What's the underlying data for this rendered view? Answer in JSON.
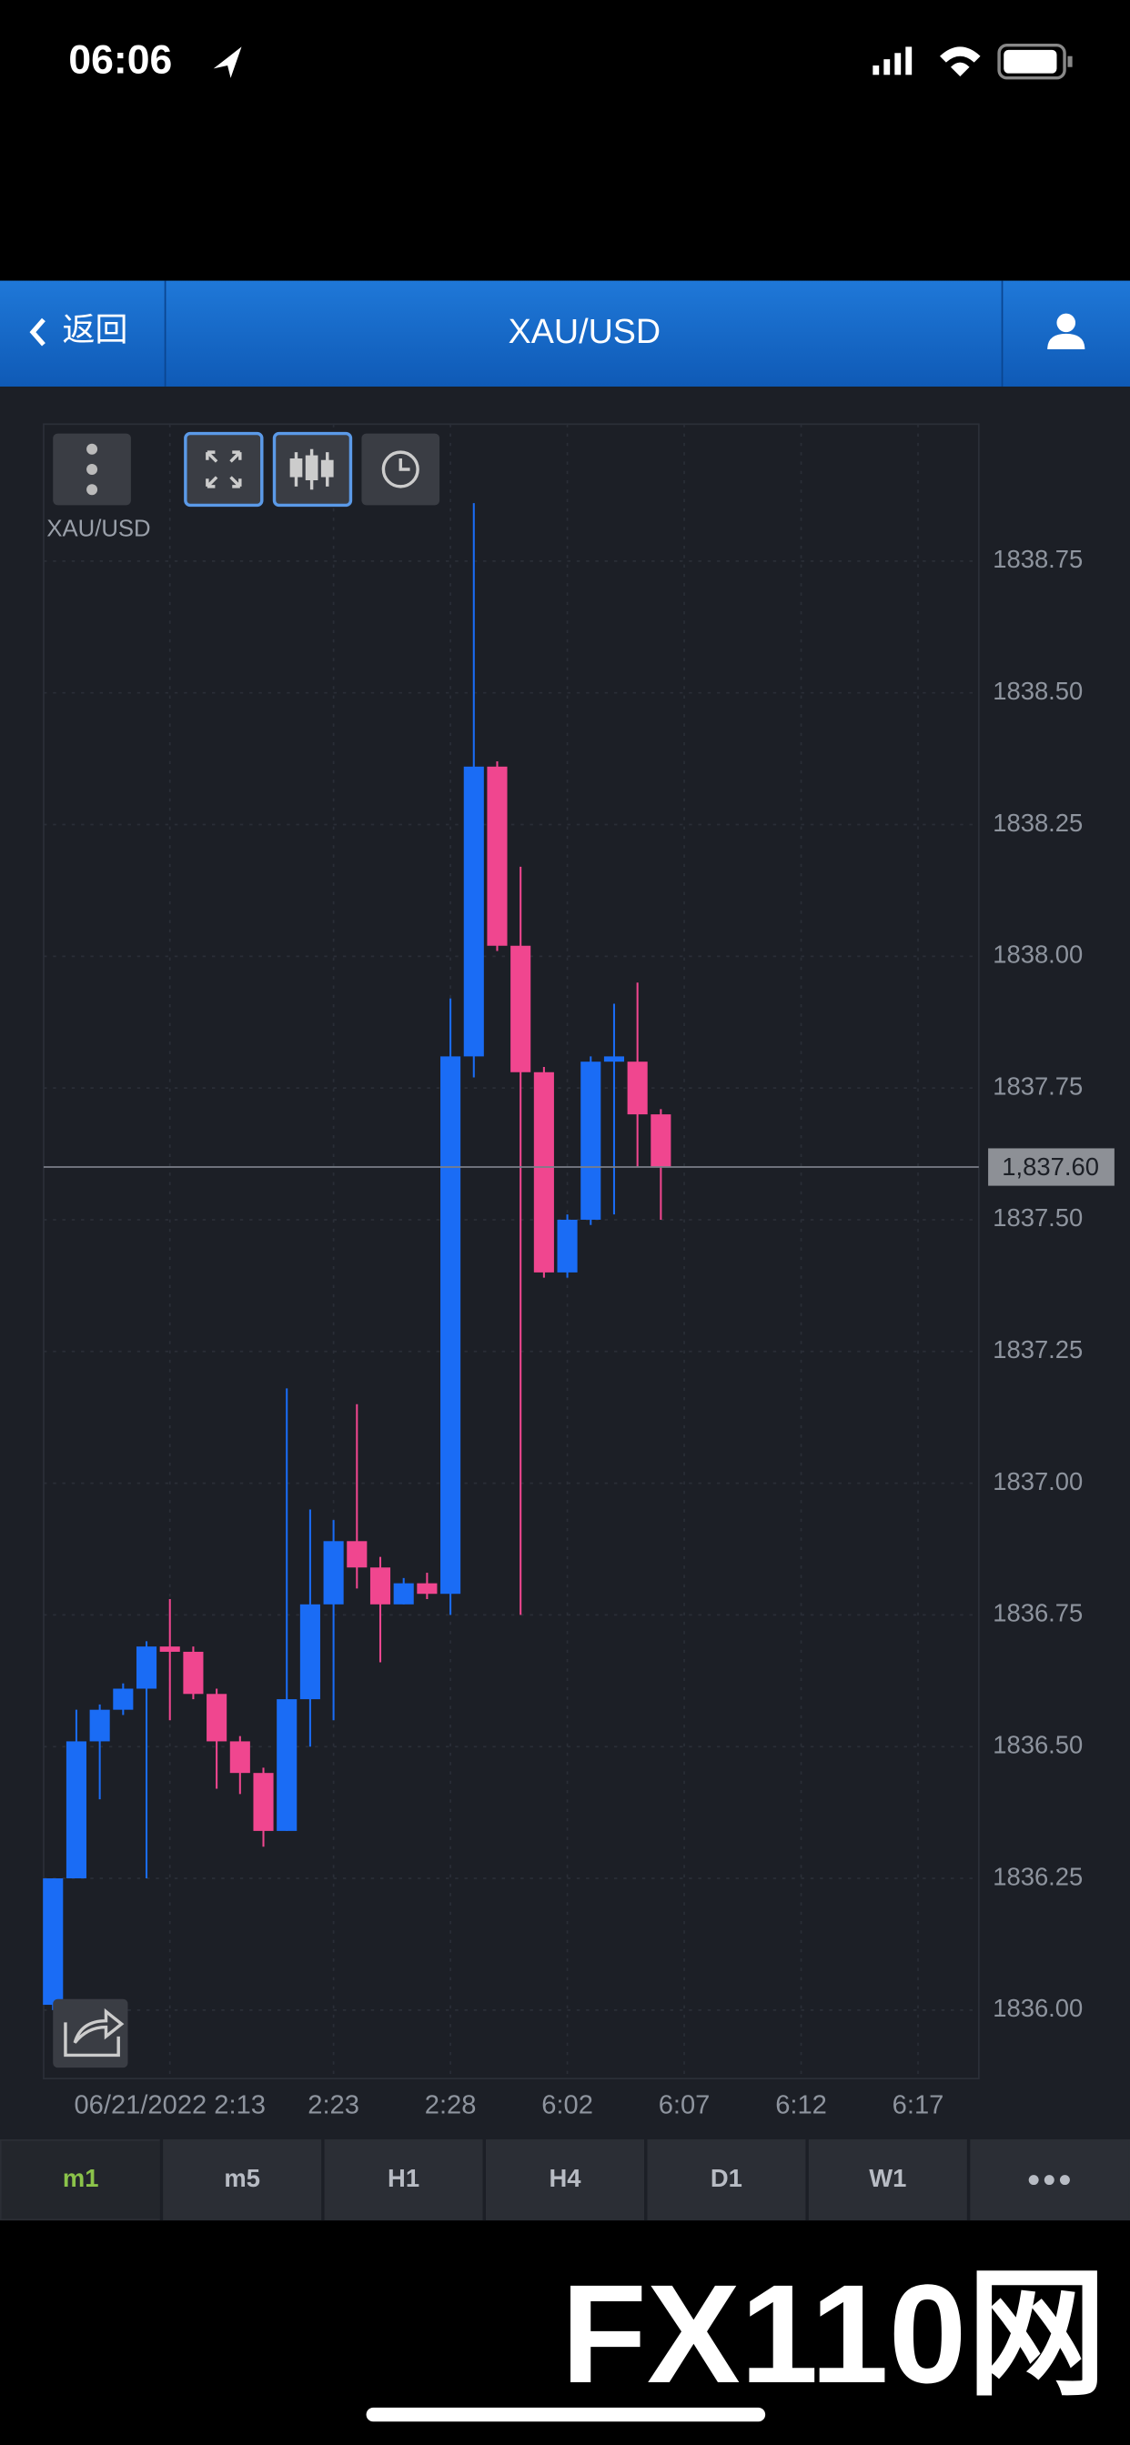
{
  "status_bar": {
    "time": "06:06"
  },
  "nav": {
    "back": "返回",
    "title": "XAU/USD"
  },
  "chart_data": {
    "type": "candlestick",
    "title": "XAU/USD",
    "open": [
      1836.01,
      1836.25,
      1836.51,
      1836.57,
      1836.61,
      1836.69,
      1836.68,
      1836.6,
      1836.51,
      1836.45,
      1836.34,
      1836.59,
      1836.77,
      1836.89,
      1836.84,
      1836.77,
      1836.81,
      1836.79,
      1837.81,
      1838.36,
      1838.02,
      1837.78,
      1837.4,
      1837.5,
      1837.8,
      1837.8,
      1837.7
    ],
    "high": [
      1836.25,
      1836.57,
      1836.58,
      1836.62,
      1836.7,
      1836.78,
      1836.69,
      1836.61,
      1836.52,
      1836.46,
      1837.18,
      1836.95,
      1836.93,
      1837.15,
      1836.86,
      1836.82,
      1836.83,
      1837.92,
      1838.86,
      1838.37,
      1838.17,
      1837.79,
      1837.51,
      1837.81,
      1837.91,
      1837.95,
      1837.71
    ],
    "low": [
      1836.0,
      1836.25,
      1836.4,
      1836.56,
      1836.25,
      1836.55,
      1836.59,
      1836.42,
      1836.41,
      1836.31,
      1836.34,
      1836.5,
      1836.55,
      1836.8,
      1836.66,
      1836.77,
      1836.78,
      1836.75,
      1837.77,
      1838.01,
      1836.75,
      1837.39,
      1837.39,
      1837.49,
      1837.51,
      1837.6,
      1837.5
    ],
    "close": [
      1836.25,
      1836.51,
      1836.57,
      1836.61,
      1836.69,
      1836.68,
      1836.6,
      1836.51,
      1836.45,
      1836.34,
      1836.59,
      1836.77,
      1836.89,
      1836.84,
      1836.77,
      1836.81,
      1836.79,
      1837.81,
      1838.36,
      1838.02,
      1837.78,
      1837.4,
      1837.5,
      1837.8,
      1837.81,
      1837.7,
      1837.6
    ],
    "up_color": "#1a6cf5",
    "down_color": "#f0468f",
    "ylim": [
      1835.87,
      1839.01
    ],
    "yticks": [
      {
        "value": 1836.0,
        "label": "1836.00"
      },
      1836.25,
      {
        "value": 1836.5,
        "label": "1836.50"
      },
      1836.75,
      {
        "value": 1837.0,
        "label": "1837.00"
      },
      1837.25,
      {
        "value": 1837.5,
        "label": "1837.50"
      },
      1837.75,
      {
        "value": 1838.0,
        "label": "1838.00"
      },
      1838.25,
      {
        "value": 1838.5,
        "label": "1838.50"
      },
      1838.75
    ],
    "xlim": [
      -0.4,
      39.6
    ],
    "xticks": [
      {
        "value": 5,
        "label": "06/21/2022 2:13"
      },
      {
        "value": 12,
        "label": "2:23"
      },
      {
        "value": 17,
        "label": "2:28"
      },
      {
        "value": 22,
        "label": "6:02"
      },
      {
        "value": 27,
        "label": "6:07"
      },
      {
        "value": 32,
        "label": "6:12"
      },
      {
        "value": 37,
        "label": "6:17"
      }
    ],
    "grid": true,
    "current_price": {
      "value": 1837.6,
      "label": "1,837.60"
    }
  },
  "timeframes": {
    "items": [
      "m1",
      "m5",
      "H1",
      "H4",
      "D1",
      "W1"
    ],
    "active": 0
  },
  "watermark": "FX110网"
}
